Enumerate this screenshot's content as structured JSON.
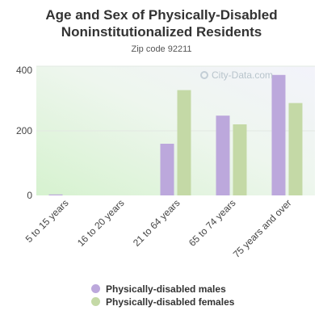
{
  "chart_data": {
    "type": "bar",
    "title": "Age and Sex of Physically-Disabled Noninstitutionalized Residents",
    "subtitle": "Zip code 92211",
    "categories": [
      "5 to 15 years",
      "16 to 20 years",
      "21 to 64 years",
      "65 to 74 years",
      "75 years and over"
    ],
    "series": [
      {
        "name": "Physically-disabled males",
        "values": [
          3,
          0,
          160,
          247,
          373
        ],
        "color": "#bca8dc"
      },
      {
        "name": "Physically-disabled females",
        "values": [
          0,
          0,
          326,
          220,
          286
        ],
        "color": "#c4d9a6"
      }
    ],
    "yticks": [
      0,
      200,
      400
    ],
    "ylim": [
      0,
      400
    ],
    "xlabel": "",
    "ylabel": "",
    "grid": true,
    "legend_position": "bottom"
  },
  "watermark": {
    "text": "City-Data.com"
  }
}
